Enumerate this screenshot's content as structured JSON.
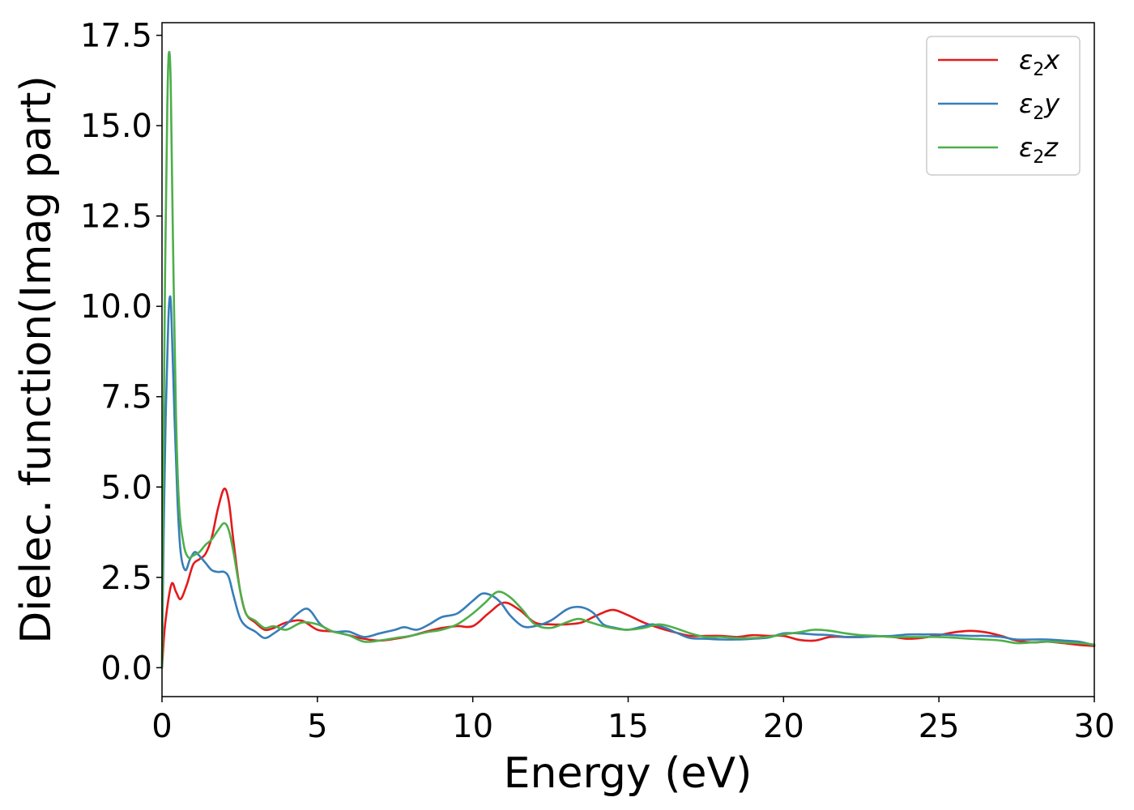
{
  "chart_data": {
    "type": "line",
    "xlabel": "Energy (eV)",
    "ylabel": "Dielec. function(Imag part)",
    "xlim": [
      0,
      30
    ],
    "ylim": [
      -0.8,
      17.85
    ],
    "xticks": [
      0,
      5,
      10,
      15,
      20,
      25,
      30
    ],
    "xtick_labels": [
      "0",
      "5",
      "10",
      "15",
      "20",
      "25",
      "30"
    ],
    "yticks": [
      0,
      2.5,
      5,
      7.5,
      10,
      12.5,
      15,
      17.5
    ],
    "ytick_labels": [
      "0.0",
      "2.5",
      "5.0",
      "7.5",
      "10.0",
      "12.5",
      "15.0",
      "17.5"
    ],
    "grid": false,
    "legend_position": "top-right",
    "series": [
      {
        "name": "x",
        "legend_base": "ε",
        "legend_sub": "2",
        "legend_suffix": "x",
        "color": "#e41a1c",
        "points": [
          [
            0,
            0
          ],
          [
            0.1,
            1.2
          ],
          [
            0.3,
            2.3
          ],
          [
            0.45,
            2.1
          ],
          [
            0.6,
            1.9
          ],
          [
            0.8,
            2.3
          ],
          [
            1.0,
            2.85
          ],
          [
            1.2,
            3.0
          ],
          [
            1.4,
            3.15
          ],
          [
            1.6,
            3.6
          ],
          [
            1.8,
            4.4
          ],
          [
            2.0,
            4.95
          ],
          [
            2.15,
            4.6
          ],
          [
            2.3,
            3.5
          ],
          [
            2.5,
            2.2
          ],
          [
            2.7,
            1.5
          ],
          [
            3.0,
            1.25
          ],
          [
            3.3,
            1.05
          ],
          [
            3.6,
            1.1
          ],
          [
            4.0,
            1.25
          ],
          [
            4.5,
            1.3
          ],
          [
            5.0,
            1.05
          ],
          [
            5.5,
            1.0
          ],
          [
            6.0,
            0.9
          ],
          [
            6.5,
            0.8
          ],
          [
            7.0,
            0.75
          ],
          [
            7.5,
            0.8
          ],
          [
            8.0,
            0.88
          ],
          [
            8.5,
            1.0
          ],
          [
            9.0,
            1.1
          ],
          [
            9.5,
            1.15
          ],
          [
            10.0,
            1.15
          ],
          [
            10.5,
            1.5
          ],
          [
            11.0,
            1.8
          ],
          [
            11.5,
            1.6
          ],
          [
            12.0,
            1.25
          ],
          [
            12.5,
            1.2
          ],
          [
            13.0,
            1.2
          ],
          [
            13.5,
            1.25
          ],
          [
            14.0,
            1.45
          ],
          [
            14.5,
            1.6
          ],
          [
            15.0,
            1.45
          ],
          [
            15.5,
            1.25
          ],
          [
            16.0,
            1.1
          ],
          [
            16.5,
            0.98
          ],
          [
            17.0,
            0.88
          ],
          [
            17.5,
            0.88
          ],
          [
            18.0,
            0.88
          ],
          [
            18.5,
            0.85
          ],
          [
            19.0,
            0.9
          ],
          [
            19.5,
            0.88
          ],
          [
            20.0,
            0.88
          ],
          [
            20.5,
            0.77
          ],
          [
            21.0,
            0.75
          ],
          [
            21.5,
            0.85
          ],
          [
            22.0,
            0.85
          ],
          [
            22.5,
            0.85
          ],
          [
            23.0,
            0.87
          ],
          [
            23.5,
            0.85
          ],
          [
            24.0,
            0.8
          ],
          [
            24.5,
            0.83
          ],
          [
            25.0,
            0.9
          ],
          [
            25.5,
            0.98
          ],
          [
            26.0,
            1.02
          ],
          [
            26.5,
            0.98
          ],
          [
            27.0,
            0.88
          ],
          [
            27.5,
            0.75
          ],
          [
            28.0,
            0.7
          ],
          [
            28.5,
            0.72
          ],
          [
            29.0,
            0.68
          ],
          [
            29.5,
            0.63
          ],
          [
            30.0,
            0.6
          ]
        ]
      },
      {
        "name": "y",
        "legend_base": "ε",
        "legend_sub": "2",
        "legend_suffix": "y",
        "color": "#377eb8",
        "points": [
          [
            0,
            0
          ],
          [
            0.05,
            3.5
          ],
          [
            0.12,
            7.0
          ],
          [
            0.2,
            9.5
          ],
          [
            0.25,
            10.25
          ],
          [
            0.3,
            9.8
          ],
          [
            0.4,
            7.0
          ],
          [
            0.5,
            4.6
          ],
          [
            0.6,
            3.2
          ],
          [
            0.75,
            2.7
          ],
          [
            0.9,
            3.0
          ],
          [
            1.05,
            3.2
          ],
          [
            1.2,
            3.1
          ],
          [
            1.4,
            2.9
          ],
          [
            1.6,
            2.7
          ],
          [
            1.8,
            2.65
          ],
          [
            2.0,
            2.65
          ],
          [
            2.15,
            2.5
          ],
          [
            2.3,
            2.0
          ],
          [
            2.5,
            1.4
          ],
          [
            2.7,
            1.15
          ],
          [
            3.0,
            1.0
          ],
          [
            3.3,
            0.82
          ],
          [
            3.6,
            0.95
          ],
          [
            4.0,
            1.2
          ],
          [
            4.3,
            1.45
          ],
          [
            4.6,
            1.63
          ],
          [
            4.8,
            1.55
          ],
          [
            5.1,
            1.2
          ],
          [
            5.5,
            1.0
          ],
          [
            6.0,
            1.0
          ],
          [
            6.5,
            0.85
          ],
          [
            7.0,
            0.95
          ],
          [
            7.5,
            1.05
          ],
          [
            7.8,
            1.12
          ],
          [
            8.2,
            1.05
          ],
          [
            8.6,
            1.2
          ],
          [
            9.0,
            1.4
          ],
          [
            9.5,
            1.5
          ],
          [
            10.0,
            1.85
          ],
          [
            10.3,
            2.05
          ],
          [
            10.6,
            2.0
          ],
          [
            10.9,
            1.8
          ],
          [
            11.2,
            1.45
          ],
          [
            11.6,
            1.15
          ],
          [
            12.0,
            1.15
          ],
          [
            12.5,
            1.3
          ],
          [
            13.0,
            1.6
          ],
          [
            13.3,
            1.68
          ],
          [
            13.6,
            1.65
          ],
          [
            13.9,
            1.5
          ],
          [
            14.2,
            1.2
          ],
          [
            14.6,
            1.1
          ],
          [
            15.0,
            1.05
          ],
          [
            15.5,
            1.15
          ],
          [
            15.8,
            1.2
          ],
          [
            16.2,
            1.1
          ],
          [
            16.6,
            0.95
          ],
          [
            17.0,
            0.82
          ],
          [
            17.5,
            0.8
          ],
          [
            18.0,
            0.78
          ],
          [
            18.5,
            0.78
          ],
          [
            19.0,
            0.8
          ],
          [
            19.5,
            0.83
          ],
          [
            20.0,
            0.95
          ],
          [
            20.5,
            0.95
          ],
          [
            21.0,
            0.92
          ],
          [
            21.5,
            0.9
          ],
          [
            22.0,
            0.85
          ],
          [
            22.5,
            0.85
          ],
          [
            23.0,
            0.87
          ],
          [
            23.5,
            0.88
          ],
          [
            24.0,
            0.92
          ],
          [
            24.5,
            0.92
          ],
          [
            25.0,
            0.92
          ],
          [
            25.5,
            0.9
          ],
          [
            26.0,
            0.88
          ],
          [
            26.5,
            0.88
          ],
          [
            27.0,
            0.85
          ],
          [
            27.5,
            0.78
          ],
          [
            28.0,
            0.78
          ],
          [
            28.5,
            0.78
          ],
          [
            29.0,
            0.75
          ],
          [
            29.5,
            0.72
          ],
          [
            30.0,
            0.62
          ]
        ]
      },
      {
        "name": "z",
        "legend_base": "ε",
        "legend_sub": "2",
        "legend_suffix": "z",
        "color": "#4daf4a",
        "points": [
          [
            0,
            0
          ],
          [
            0.04,
            5.0
          ],
          [
            0.1,
            11.0
          ],
          [
            0.17,
            15.5
          ],
          [
            0.22,
            17.0
          ],
          [
            0.28,
            16.2
          ],
          [
            0.35,
            12.0
          ],
          [
            0.45,
            7.0
          ],
          [
            0.55,
            4.5
          ],
          [
            0.7,
            3.4
          ],
          [
            0.85,
            3.05
          ],
          [
            1.0,
            3.1
          ],
          [
            1.2,
            3.2
          ],
          [
            1.4,
            3.4
          ],
          [
            1.6,
            3.55
          ],
          [
            1.8,
            3.8
          ],
          [
            2.0,
            4.0
          ],
          [
            2.15,
            3.8
          ],
          [
            2.3,
            3.2
          ],
          [
            2.5,
            2.2
          ],
          [
            2.7,
            1.5
          ],
          [
            3.0,
            1.3
          ],
          [
            3.3,
            1.1
          ],
          [
            3.6,
            1.15
          ],
          [
            4.0,
            1.05
          ],
          [
            4.5,
            1.25
          ],
          [
            5.0,
            1.2
          ],
          [
            5.5,
            1.0
          ],
          [
            6.0,
            0.9
          ],
          [
            6.5,
            0.72
          ],
          [
            7.0,
            0.75
          ],
          [
            7.5,
            0.82
          ],
          [
            8.0,
            0.88
          ],
          [
            8.5,
            0.98
          ],
          [
            9.0,
            1.05
          ],
          [
            9.5,
            1.2
          ],
          [
            10.0,
            1.5
          ],
          [
            10.4,
            1.8
          ],
          [
            10.8,
            2.1
          ],
          [
            11.2,
            1.95
          ],
          [
            11.6,
            1.6
          ],
          [
            12.0,
            1.2
          ],
          [
            12.5,
            1.1
          ],
          [
            13.0,
            1.25
          ],
          [
            13.4,
            1.35
          ],
          [
            13.8,
            1.25
          ],
          [
            14.2,
            1.15
          ],
          [
            14.6,
            1.08
          ],
          [
            15.0,
            1.05
          ],
          [
            15.5,
            1.1
          ],
          [
            16.0,
            1.2
          ],
          [
            16.5,
            1.1
          ],
          [
            17.0,
            0.95
          ],
          [
            17.5,
            0.85
          ],
          [
            18.0,
            0.85
          ],
          [
            18.5,
            0.82
          ],
          [
            19.0,
            0.82
          ],
          [
            19.5,
            0.85
          ],
          [
            20.0,
            0.92
          ],
          [
            20.5,
            0.98
          ],
          [
            21.0,
            1.05
          ],
          [
            21.5,
            1.02
          ],
          [
            22.0,
            0.95
          ],
          [
            22.5,
            0.9
          ],
          [
            23.0,
            0.88
          ],
          [
            23.5,
            0.85
          ],
          [
            24.0,
            0.85
          ],
          [
            24.5,
            0.85
          ],
          [
            25.0,
            0.85
          ],
          [
            25.5,
            0.83
          ],
          [
            26.0,
            0.8
          ],
          [
            26.5,
            0.78
          ],
          [
            27.0,
            0.75
          ],
          [
            27.5,
            0.68
          ],
          [
            28.0,
            0.7
          ],
          [
            28.5,
            0.72
          ],
          [
            29.0,
            0.7
          ],
          [
            29.5,
            0.68
          ],
          [
            30.0,
            0.64
          ]
        ]
      }
    ]
  }
}
